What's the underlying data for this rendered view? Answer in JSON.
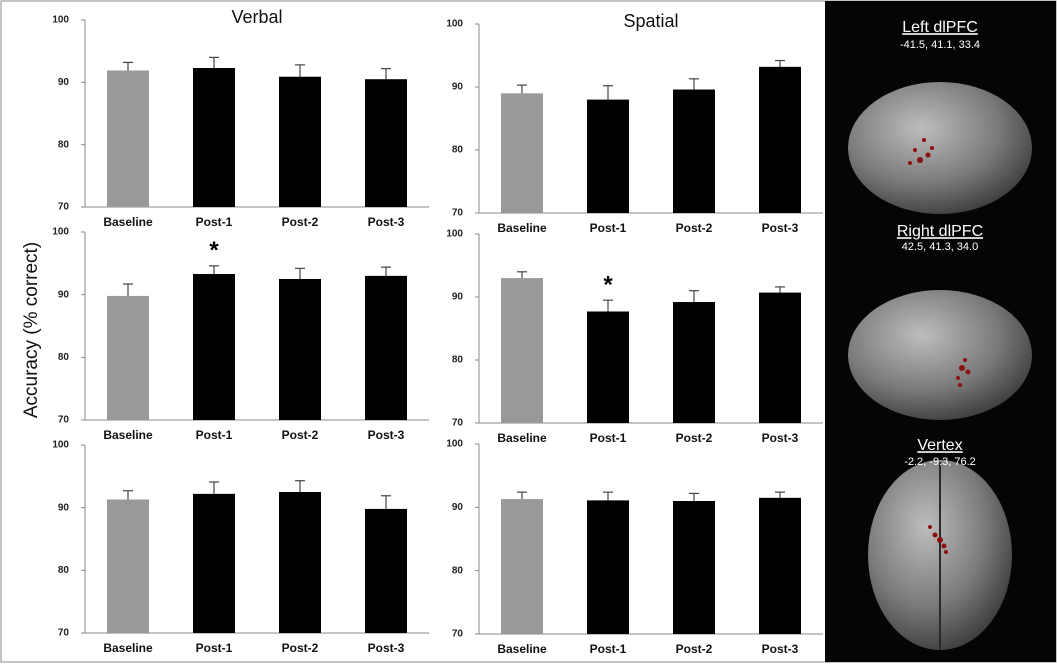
{
  "y_label": "Accuracy (% correct)",
  "chart_data": [
    {
      "type": "bar",
      "title": "Verbal",
      "categories": [
        "Baseline",
        "Post-1",
        "Post-2",
        "Post-3"
      ],
      "values": [
        91.9,
        92.3,
        90.9,
        90.5
      ],
      "error": [
        1.3,
        1.7,
        1.9,
        1.7
      ],
      "colors": [
        "#999999",
        "#000000",
        "#000000",
        "#000000"
      ],
      "ylim": [
        70,
        100
      ],
      "yticks": [
        70,
        80,
        90,
        100
      ]
    },
    {
      "type": "bar",
      "title": "Spatial",
      "categories": [
        "Baseline",
        "Post-1",
        "Post-2",
        "Post-3"
      ],
      "values": [
        89.0,
        88.0,
        89.6,
        93.2
      ],
      "error": [
        1.3,
        2.2,
        1.7,
        1.0
      ],
      "colors": [
        "#999999",
        "#000000",
        "#000000",
        "#000000"
      ],
      "ylim": [
        70,
        100
      ],
      "yticks": [
        70,
        80,
        90,
        100
      ]
    },
    {
      "type": "bar",
      "categories": [
        "Baseline",
        "Post-1",
        "Post-2",
        "Post-3"
      ],
      "values": [
        89.8,
        93.3,
        92.5,
        93.0
      ],
      "error": [
        1.9,
        1.3,
        1.7,
        1.4
      ],
      "colors": [
        "#999999",
        "#000000",
        "#000000",
        "#000000"
      ],
      "ylim": [
        70,
        100
      ],
      "yticks": [
        70,
        80,
        90,
        100
      ],
      "annotations": [
        {
          "category": "Post-1",
          "text": "*"
        }
      ]
    },
    {
      "type": "bar",
      "categories": [
        "Baseline",
        "Post-1",
        "Post-2",
        "Post-3"
      ],
      "values": [
        93.0,
        87.7,
        89.2,
        90.7
      ],
      "error": [
        1.0,
        1.8,
        1.8,
        0.9
      ],
      "colors": [
        "#999999",
        "#000000",
        "#000000",
        "#000000"
      ],
      "ylim": [
        70,
        100
      ],
      "yticks": [
        70,
        80,
        90,
        100
      ],
      "annotations": [
        {
          "category": "Post-1",
          "text": "*"
        }
      ]
    },
    {
      "type": "bar",
      "categories": [
        "Baseline",
        "Post-1",
        "Post-2",
        "Post-3"
      ],
      "values": [
        91.3,
        92.2,
        92.5,
        89.8
      ],
      "error": [
        1.4,
        1.9,
        1.8,
        2.1
      ],
      "colors": [
        "#999999",
        "#000000",
        "#000000",
        "#000000"
      ],
      "ylim": [
        70,
        100
      ],
      "yticks": [
        70,
        80,
        90,
        100
      ]
    },
    {
      "type": "bar",
      "categories": [
        "Baseline",
        "Post-1",
        "Post-2",
        "Post-3"
      ],
      "values": [
        91.3,
        91.1,
        91.0,
        91.5
      ],
      "error": [
        1.1,
        1.3,
        1.2,
        0.9
      ],
      "colors": [
        "#999999",
        "#000000",
        "#000000",
        "#000000"
      ],
      "ylim": [
        70,
        100
      ],
      "yticks": [
        70,
        80,
        90,
        100
      ]
    }
  ],
  "brain_panels": [
    {
      "title": "Left dlPFC",
      "coords": "-41.5, 41.1, 33.4"
    },
    {
      "title": "Right dlPFC",
      "coords": "42.5, 41.3, 34.0"
    },
    {
      "title": "Vertex",
      "coords": "-2.2, -9.3, 76.2"
    }
  ]
}
